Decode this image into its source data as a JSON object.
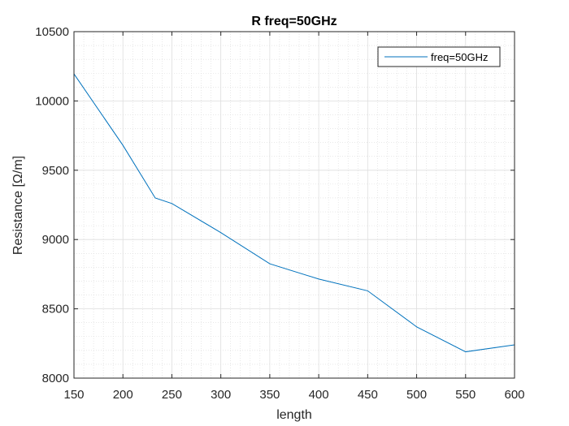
{
  "chart_data": {
    "type": "line",
    "title": "R freq=50GHz",
    "xlabel": "length",
    "ylabel": "Resistance [Ω/m]",
    "xlim": [
      150,
      600
    ],
    "ylim": [
      8000,
      10500
    ],
    "xticks": [
      "150",
      "200",
      "250",
      "300",
      "350",
      "400",
      "450",
      "500",
      "550",
      "600"
    ],
    "yticks": [
      "8000",
      "8500",
      "9000",
      "9500",
      "10000",
      "10500"
    ],
    "grid": "major and minor",
    "legend_position": "top-right",
    "series": [
      {
        "name": "freq=50GHz",
        "color": "#0072bd",
        "x": [
          150,
          200,
          233,
          250,
          300,
          350,
          400,
          450,
          500,
          550,
          600
        ],
        "y": [
          10195,
          9680,
          9300,
          9260,
          9050,
          8825,
          8715,
          8630,
          8370,
          8190,
          8240
        ]
      }
    ]
  }
}
